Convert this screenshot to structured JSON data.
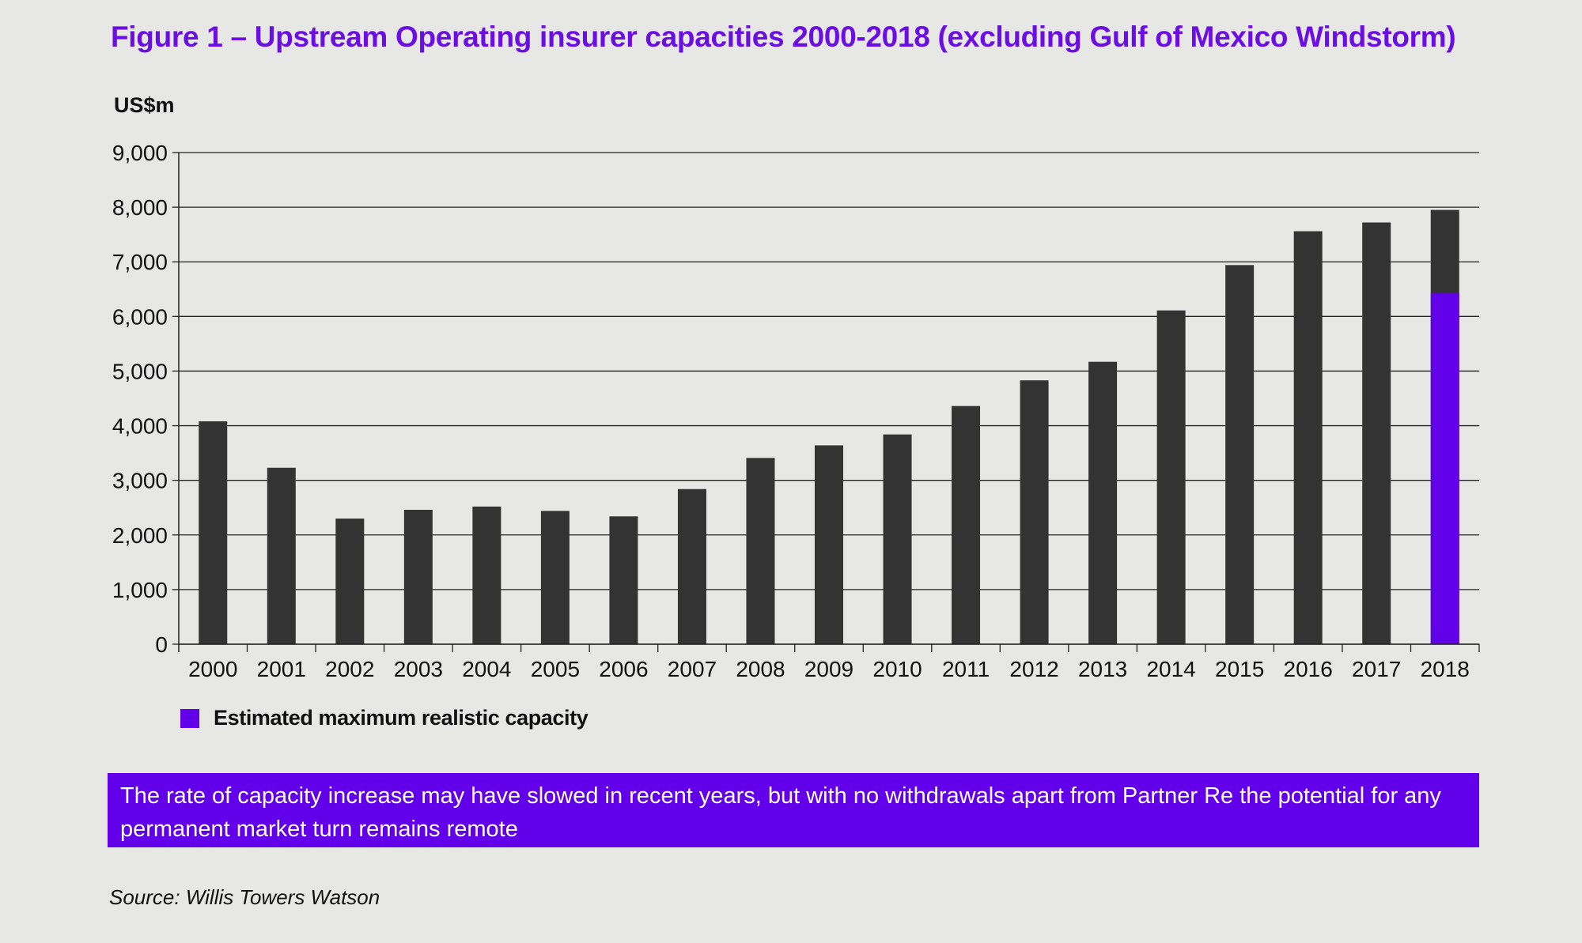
{
  "title": "Figure 1 – Upstream Operating insurer capacities 2000-2018 (excluding Gulf of Mexico Windstorm)",
  "unit_label": "US$m",
  "legend": {
    "label": "Estimated maximum realistic capacity",
    "color": "#6200ea"
  },
  "callout": "The rate of capacity increase may have slowed in recent years, but with no withdrawals apart from Partner Re the potential for any permanent market turn remains remote",
  "source": "Source: Willis Towers Watson",
  "chart_data": {
    "type": "bar",
    "stacked": true,
    "ylim": [
      0,
      9000
    ],
    "yticks": [
      0,
      1000,
      2000,
      3000,
      4000,
      5000,
      6000,
      7000,
      8000,
      9000
    ],
    "ytick_labels": [
      "0",
      "1,000",
      "2,000",
      "3,000",
      "4,000",
      "5,000",
      "6,000",
      "7,000",
      "8,000",
      "9,000"
    ],
    "grid": true,
    "legend_position": "bottom-left",
    "categories": [
      "2000",
      "2001",
      "2002",
      "2003",
      "2004",
      "2005",
      "2006",
      "2007",
      "2008",
      "2009",
      "2010",
      "2011",
      "2012",
      "2013",
      "2014",
      "2015",
      "2016",
      "2017",
      "2018"
    ],
    "total_values": [
      4080,
      3230,
      2300,
      2460,
      2520,
      2440,
      2340,
      2840,
      3410,
      3640,
      3840,
      4360,
      4830,
      5170,
      6110,
      6940,
      7560,
      7720,
      7950
    ],
    "series": [
      {
        "name": "Estimated maximum realistic capacity",
        "color": "#6200ea",
        "values": [
          0,
          0,
          0,
          0,
          0,
          0,
          0,
          0,
          0,
          0,
          0,
          0,
          0,
          0,
          0,
          0,
          0,
          0,
          6430
        ]
      }
    ],
    "bar_color": "#333333"
  }
}
